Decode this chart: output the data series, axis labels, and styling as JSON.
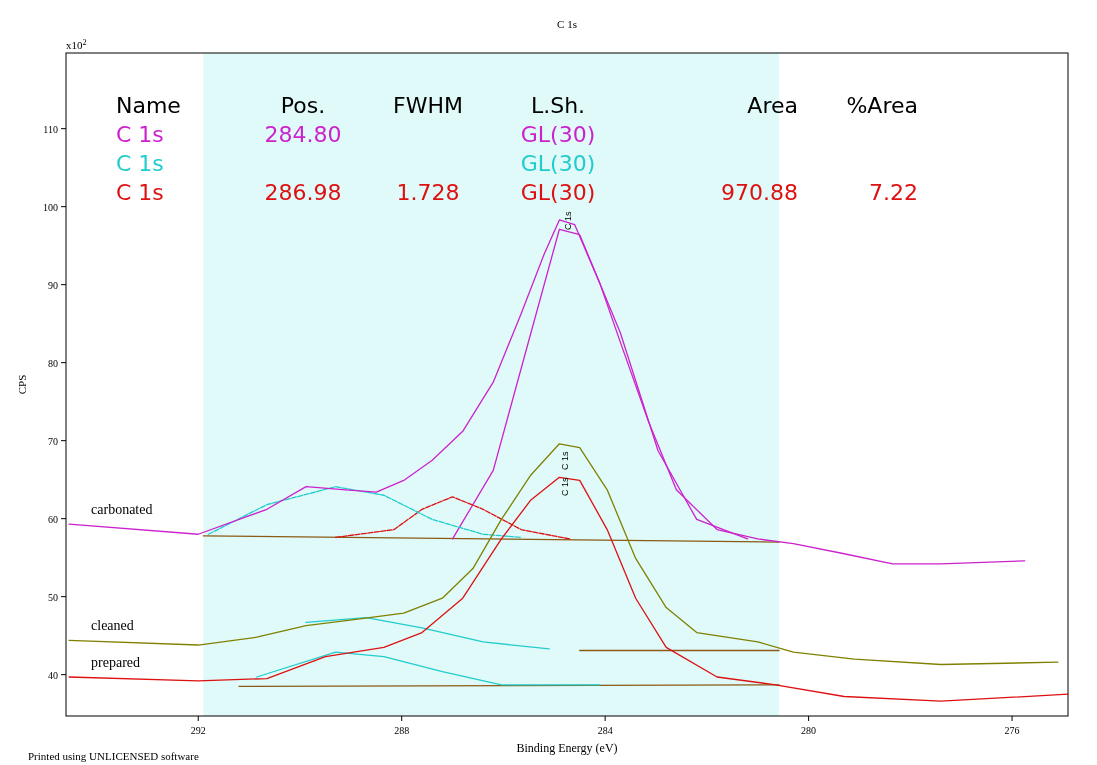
{
  "chart_data": {
    "type": "line",
    "title": "C 1s",
    "xlabel": "Binding Energy (eV)",
    "ylabel": "CPS",
    "xlim": [
      294.6,
      274.9
    ],
    "ylim": [
      34.7,
      119.7
    ],
    "xticks": [
      292,
      288,
      284,
      280,
      276
    ],
    "yticks": [
      40,
      50,
      60,
      70,
      80,
      90,
      100,
      110
    ],
    "grid": false,
    "line_style": "solid",
    "marker": "none",
    "bands": [
      {
        "axis": "x",
        "from": 291.9,
        "to": 280.58,
        "color": "#e0fafa"
      }
    ],
    "annotations": [
      "Name",
      "Pos.",
      "FWHM",
      "L.Sh.",
      "Area",
      "%Area",
      "C 1s",
      "284.80",
      "GL(30)",
      "C 1s",
      "GL(30)",
      "C 1s",
      "286.98",
      "1.728",
      "GL(30)",
      "970.88",
      "7.22",
      "x10$^{2}$",
      "Printed using UNLICENSED software",
      "C 1s",
      "C 1s",
      "C 1s"
    ],
    "series": [
      {
        "name": "carbonated",
        "color": "#cc22cc",
        "x": [
          294.54,
          292,
          290.65,
          289.88,
          289.1,
          288.5,
          287.96,
          287.4,
          286.8,
          286.2,
          285.65,
          285.2,
          284.9,
          284.6,
          284.1,
          283.7,
          283.15,
          282.6,
          281.8,
          281.0,
          280.3,
          279.3,
          278.35,
          277.4,
          275.75
        ],
        "values": [
          59.3,
          58.0,
          61.2,
          64.1,
          63.7,
          63.4,
          64.9,
          67.5,
          71.2,
          77.5,
          86.3,
          93.9,
          98.3,
          97.7,
          90.1,
          82.6,
          72.5,
          63.7,
          58.6,
          57.4,
          56.8,
          55.5,
          54.2,
          54.2,
          54.6
        ]
      },
      {
        "name": "cleaned",
        "color": "#808000",
        "x": [
          294.54,
          292,
          290.85,
          289.88,
          288.9,
          287.96,
          287.2,
          286.6,
          286.04,
          285.46,
          284.9,
          284.5,
          283.96,
          283.4,
          282.8,
          282.2,
          281.0,
          280.3,
          279.1,
          277.4,
          275.1
        ],
        "values": [
          44.4,
          43.8,
          44.8,
          46.3,
          47.1,
          47.9,
          49.8,
          53.6,
          59.9,
          65.6,
          69.6,
          69.1,
          63.7,
          54.9,
          48.6,
          45.4,
          44.2,
          42.9,
          42.0,
          41.3,
          41.6
        ]
      },
      {
        "name": "prepared",
        "color": "#dd1111",
        "x": [
          294.54,
          292,
          290.65,
          289.5,
          288.35,
          287.6,
          286.8,
          286.04,
          285.46,
          284.9,
          284.5,
          283.96,
          283.4,
          282.8,
          281.8,
          280.65,
          279.3,
          277.4,
          274.9
        ],
        "values": [
          39.7,
          39.2,
          39.5,
          42.3,
          43.5,
          45.4,
          49.8,
          57.4,
          62.4,
          65.3,
          64.9,
          58.6,
          49.8,
          43.5,
          39.7,
          38.7,
          37.2,
          36.6,
          37.5
        ]
      },
      {
        "color": "#22cccc",
        "x": [
          291.8,
          290.65,
          289.3,
          288.35,
          287.4,
          286.4,
          285.65
        ],
        "values": [
          58.0,
          61.8,
          64.1,
          63.0,
          59.9,
          58.0,
          57.6
        ],
        "line_style": "dashed"
      },
      {
        "color": "#dd1111",
        "x": [
          289.3,
          288.15,
          287.6,
          287,
          286.4,
          285.65,
          284.7
        ],
        "values": [
          57.6,
          58.6,
          61.2,
          62.8,
          61.2,
          58.6,
          57.4
        ],
        "line_style": "dashed"
      },
      {
        "color": "#cc22cc",
        "x": [
          287,
          286.2,
          285.46,
          284.9,
          284.5,
          283.7,
          282.96,
          282.2,
          281.2
        ],
        "values": [
          57.4,
          66.2,
          83.8,
          97.1,
          96.4,
          83.8,
          68.7,
          59.9,
          57.4
        ]
      },
      {
        "color": "#22cccc",
        "x": [
          289.88,
          288.7,
          287.6,
          286.4,
          285.1
        ],
        "values": [
          46.7,
          47.3,
          46.0,
          44.2,
          43.3
        ]
      },
      {
        "color": "#22cccc",
        "x": [
          290.85,
          289.3,
          288.35,
          287.2,
          286.04,
          284.1
        ],
        "values": [
          39.7,
          42.9,
          42.3,
          40.4,
          38.7,
          38.7
        ]
      },
      {
        "color": "#8b5a14",
        "x": [
          291.9,
          280.58
        ],
        "values": [
          57.8,
          57.0
        ]
      },
      {
        "color": "#8b5a14",
        "x": [
          284.5,
          280.58
        ],
        "values": [
          43.1,
          43.1
        ]
      },
      {
        "color": "#8b5a14",
        "x": [
          291.2,
          280.58
        ],
        "values": [
          38.5,
          38.7
        ]
      }
    ]
  }
}
